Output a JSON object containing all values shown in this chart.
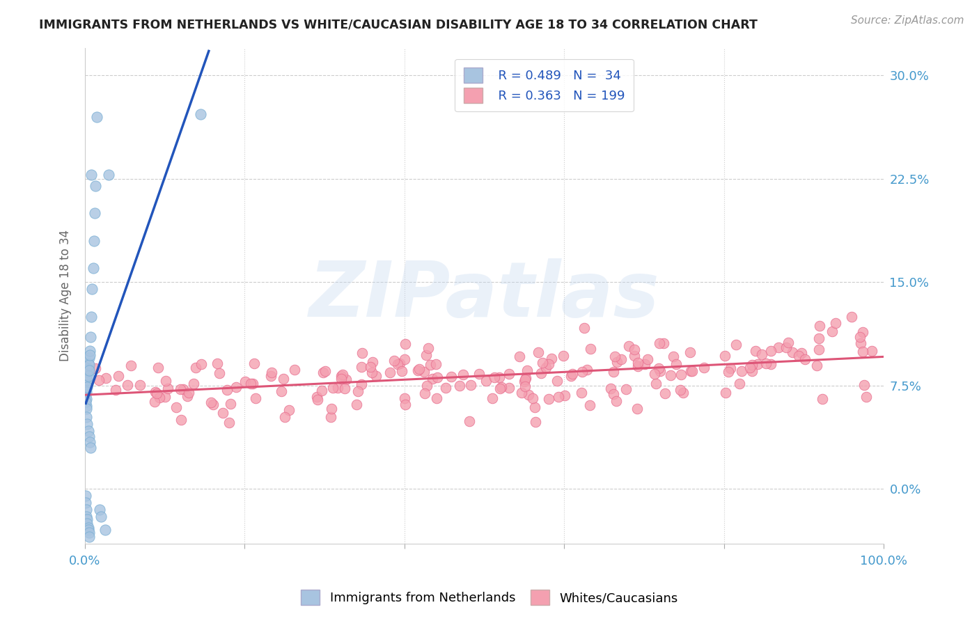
{
  "title": "IMMIGRANTS FROM NETHERLANDS VS WHITE/CAUCASIAN DISABILITY AGE 18 TO 34 CORRELATION CHART",
  "source": "Source: ZipAtlas.com",
  "ylabel": "Disability Age 18 to 34",
  "xlim": [
    0.0,
    1.0
  ],
  "ylim": [
    -0.04,
    0.32
  ],
  "yticks": [
    0.0,
    0.075,
    0.15,
    0.225,
    0.3
  ],
  "ytick_labels": [
    "0.0%",
    "7.5%",
    "15.0%",
    "22.5%",
    "30.0%"
  ],
  "xticks": [
    0.0,
    0.2,
    0.4,
    0.6,
    0.8,
    1.0
  ],
  "xtick_labels": [
    "0.0%",
    "",
    "",
    "",
    "",
    "100.0%"
  ],
  "blue_R": 0.489,
  "blue_N": 34,
  "pink_R": 0.363,
  "pink_N": 199,
  "blue_color": "#a8c4e0",
  "blue_edge": "#7aafd4",
  "pink_color": "#f4a0b0",
  "pink_edge": "#e87090",
  "blue_line_color": "#2255bb",
  "pink_line_color": "#dd5577",
  "dashed_line_color": "#90b8d8",
  "watermark_text": "ZIPatlas",
  "legend_label_blue": "Immigrants from Netherlands",
  "legend_label_pink": "Whites/Caucasians",
  "title_color": "#222222",
  "axis_label_color": "#4499cc",
  "blue_scatter_x": [
    0.001,
    0.001,
    0.001,
    0.001,
    0.001,
    0.002,
    0.002,
    0.002,
    0.002,
    0.002,
    0.002,
    0.003,
    0.003,
    0.003,
    0.003,
    0.004,
    0.004,
    0.004,
    0.005,
    0.005,
    0.005,
    0.006,
    0.006,
    0.007,
    0.008,
    0.009,
    0.01,
    0.011,
    0.012,
    0.013,
    0.015,
    0.018,
    0.02,
    0.025
  ],
  "blue_scatter_y": [
    0.082,
    0.078,
    0.075,
    0.072,
    0.068,
    0.085,
    0.08,
    0.076,
    0.07,
    0.065,
    0.06,
    0.088,
    0.083,
    0.079,
    0.074,
    0.091,
    0.087,
    0.082,
    0.095,
    0.09,
    0.086,
    0.1,
    0.097,
    0.11,
    0.125,
    0.145,
    0.16,
    0.18,
    0.2,
    0.22,
    0.27,
    -0.015,
    -0.02,
    -0.03
  ],
  "pink_scatter_seed": 123
}
